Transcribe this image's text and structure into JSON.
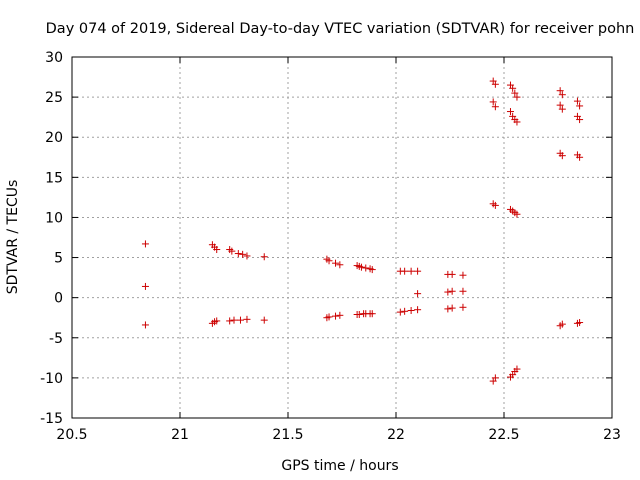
{
  "chart_data": {
    "type": "scatter",
    "title": "Day 074 of 2019, Sidereal Day-to-day VTEC variation (SDTVAR) for receiver pohn",
    "xlabel": "GPS time / hours",
    "ylabel": "SDTVAR / TECUs",
    "xlim": [
      20.5,
      23
    ],
    "ylim": [
      -15,
      30
    ],
    "xticks": [
      20.5,
      21,
      21.5,
      22,
      22.5,
      23
    ],
    "xtick_labels": [
      "20.5",
      "21",
      "21.5",
      "22",
      "22.5",
      "23"
    ],
    "yticks": [
      -15,
      -10,
      -5,
      0,
      5,
      10,
      15,
      20,
      25,
      30
    ],
    "ytick_labels": [
      "-15",
      "-10",
      "-5",
      "0",
      "5",
      "10",
      "15",
      "20",
      "25",
      "30"
    ],
    "grid": true,
    "marker": "+",
    "color": "#cc0000",
    "series": [
      {
        "name": "SDTVAR",
        "points": [
          [
            20.84,
            6.7
          ],
          [
            20.84,
            1.4
          ],
          [
            20.84,
            -3.4
          ],
          [
            21.15,
            6.6
          ],
          [
            21.16,
            6.3
          ],
          [
            21.17,
            6.0
          ],
          [
            21.15,
            -3.2
          ],
          [
            21.16,
            -3.0
          ],
          [
            21.17,
            -2.9
          ],
          [
            21.23,
            6.0
          ],
          [
            21.24,
            5.8
          ],
          [
            21.27,
            5.5
          ],
          [
            21.29,
            5.4
          ],
          [
            21.31,
            5.2
          ],
          [
            21.23,
            -2.9
          ],
          [
            21.25,
            -2.8
          ],
          [
            21.28,
            -2.8
          ],
          [
            21.31,
            -2.7
          ],
          [
            21.39,
            5.1
          ],
          [
            21.39,
            -2.8
          ],
          [
            21.68,
            4.8
          ],
          [
            21.69,
            4.6
          ],
          [
            21.72,
            4.3
          ],
          [
            21.74,
            4.1
          ],
          [
            21.68,
            -2.5
          ],
          [
            21.69,
            -2.4
          ],
          [
            21.72,
            -2.3
          ],
          [
            21.74,
            -2.2
          ],
          [
            21.82,
            4.0
          ],
          [
            21.83,
            3.9
          ],
          [
            21.84,
            3.8
          ],
          [
            21.86,
            3.7
          ],
          [
            21.88,
            3.6
          ],
          [
            21.89,
            3.5
          ],
          [
            21.82,
            -2.1
          ],
          [
            21.83,
            -2.1
          ],
          [
            21.85,
            -2.0
          ],
          [
            21.86,
            -2.0
          ],
          [
            21.88,
            -2.0
          ],
          [
            21.89,
            -2.0
          ],
          [
            22.02,
            3.3
          ],
          [
            22.04,
            3.3
          ],
          [
            22.07,
            3.3
          ],
          [
            22.1,
            3.3
          ],
          [
            22.02,
            -1.8
          ],
          [
            22.04,
            -1.7
          ],
          [
            22.07,
            -1.6
          ],
          [
            22.1,
            -1.5
          ],
          [
            22.1,
            0.5
          ],
          [
            22.24,
            2.9
          ],
          [
            22.26,
            2.9
          ],
          [
            22.31,
            2.8
          ],
          [
            22.24,
            0.7
          ],
          [
            22.26,
            0.8
          ],
          [
            22.31,
            0.8
          ],
          [
            22.24,
            -1.4
          ],
          [
            22.26,
            -1.3
          ],
          [
            22.31,
            -1.2
          ],
          [
            22.45,
            27.0
          ],
          [
            22.46,
            26.6
          ],
          [
            22.45,
            24.4
          ],
          [
            22.46,
            23.8
          ],
          [
            22.45,
            11.7
          ],
          [
            22.46,
            11.5
          ],
          [
            22.45,
            -10.4
          ],
          [
            22.46,
            -10.0
          ],
          [
            22.53,
            26.5
          ],
          [
            22.54,
            26.1
          ],
          [
            22.55,
            25.5
          ],
          [
            22.56,
            25.0
          ],
          [
            22.53,
            23.2
          ],
          [
            22.54,
            22.6
          ],
          [
            22.55,
            22.2
          ],
          [
            22.56,
            21.9
          ],
          [
            22.53,
            11.0
          ],
          [
            22.54,
            10.8
          ],
          [
            22.55,
            10.6
          ],
          [
            22.56,
            10.4
          ],
          [
            22.53,
            -9.9
          ],
          [
            22.54,
            -9.6
          ],
          [
            22.55,
            -9.2
          ],
          [
            22.56,
            -8.9
          ],
          [
            22.76,
            25.8
          ],
          [
            22.77,
            25.3
          ],
          [
            22.76,
            24.0
          ],
          [
            22.77,
            23.5
          ],
          [
            22.76,
            18.0
          ],
          [
            22.77,
            17.7
          ],
          [
            22.76,
            -3.5
          ],
          [
            22.77,
            -3.3
          ],
          [
            22.84,
            24.5
          ],
          [
            22.85,
            23.9
          ],
          [
            22.84,
            22.6
          ],
          [
            22.85,
            22.2
          ],
          [
            22.84,
            17.8
          ],
          [
            22.85,
            17.5
          ],
          [
            22.84,
            -3.2
          ],
          [
            22.85,
            -3.1
          ]
        ]
      }
    ]
  }
}
